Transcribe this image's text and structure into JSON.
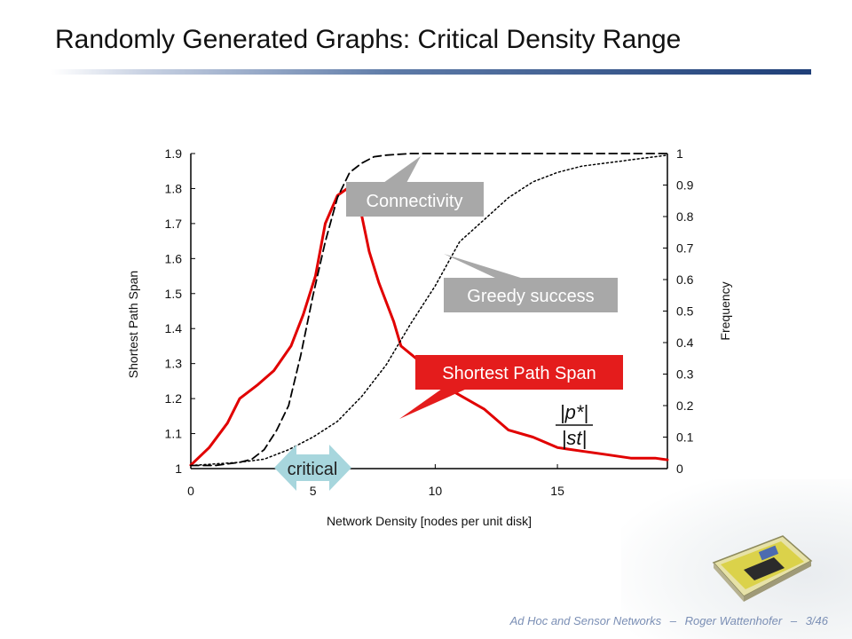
{
  "slide": {
    "title": "Randomly Generated Graphs: Critical Density Range",
    "footer": {
      "course": "Ad Hoc and Sensor Networks",
      "separator": "–",
      "author": "Roger Wattenhofer",
      "page": "3/46"
    }
  },
  "colors": {
    "span_line": "#e10000",
    "connectivity_line": "#000000",
    "greedy_line": "#000000",
    "callout_gray": "#a8a8a8",
    "callout_red": "#e41c1c",
    "critical_arrow": "#a7d6dd"
  },
  "chart_data": {
    "type": "line",
    "xlabel": "Network Density [nodes per unit disk]",
    "ylabel": "Shortest Path Span",
    "y2label": "Frequency",
    "xlim": [
      0,
      19.5
    ],
    "ylim": [
      1,
      1.9
    ],
    "y2lim": [
      0,
      1
    ],
    "xticks": [
      "0",
      "5",
      "10",
      "15"
    ],
    "yticks": [
      "1",
      "1.1",
      "1.2",
      "1.3",
      "1.4",
      "1.5",
      "1.6",
      "1.7",
      "1.8",
      "1.9"
    ],
    "y2ticks": [
      "0",
      "0.1",
      "0.2",
      "0.3",
      "0.4",
      "0.5",
      "0.6",
      "0.7",
      "0.8",
      "0.9",
      "1"
    ],
    "series": [
      {
        "key": "span",
        "axis": "left",
        "style": "solid",
        "x": [
          0,
          0.75,
          1.5,
          2,
          2.75,
          3.4,
          4.1,
          4.6,
          5.1,
          5.5,
          6.0,
          6.6,
          7.0,
          7.3,
          7.7,
          8.3,
          8.6,
          9.3,
          10,
          11,
          12,
          13,
          14,
          15,
          16,
          17,
          18,
          19,
          19.5
        ],
        "y": [
          1.01,
          1.06,
          1.13,
          1.2,
          1.24,
          1.28,
          1.35,
          1.44,
          1.55,
          1.7,
          1.78,
          1.81,
          1.72,
          1.62,
          1.53,
          1.42,
          1.35,
          1.31,
          1.25,
          1.21,
          1.17,
          1.11,
          1.09,
          1.06,
          1.05,
          1.04,
          1.03,
          1.03,
          1.025
        ]
      },
      {
        "key": "connectivity",
        "axis": "right",
        "style": "dashed",
        "x": [
          0,
          1,
          2,
          2.5,
          3,
          3.5,
          4,
          4.5,
          5,
          5.5,
          6,
          6.5,
          7,
          7.5,
          8,
          9,
          10,
          12,
          15,
          19.5
        ],
        "y": [
          0.01,
          0.01,
          0.02,
          0.03,
          0.06,
          0.12,
          0.2,
          0.36,
          0.55,
          0.72,
          0.86,
          0.94,
          0.97,
          0.99,
          0.995,
          1,
          1,
          1,
          1,
          1
        ]
      },
      {
        "key": "greedy",
        "axis": "right",
        "style": "dotted",
        "x": [
          0,
          2,
          3,
          4,
          5,
          6,
          7,
          8,
          9,
          10,
          11,
          12,
          13,
          14,
          15,
          16,
          17,
          18,
          19,
          19.5
        ],
        "y": [
          0.01,
          0.02,
          0.03,
          0.06,
          0.1,
          0.15,
          0.23,
          0.33,
          0.46,
          0.58,
          0.72,
          0.79,
          0.86,
          0.91,
          0.94,
          0.96,
          0.97,
          0.98,
          0.99,
          0.995
        ]
      }
    ],
    "annotations": {
      "connectivity": "Connectivity",
      "greedy": "Greedy success",
      "span": "Shortest Path Span",
      "critical": "critical",
      "formula_numerator": "|p*|",
      "formula_denominator": "|st|"
    }
  }
}
